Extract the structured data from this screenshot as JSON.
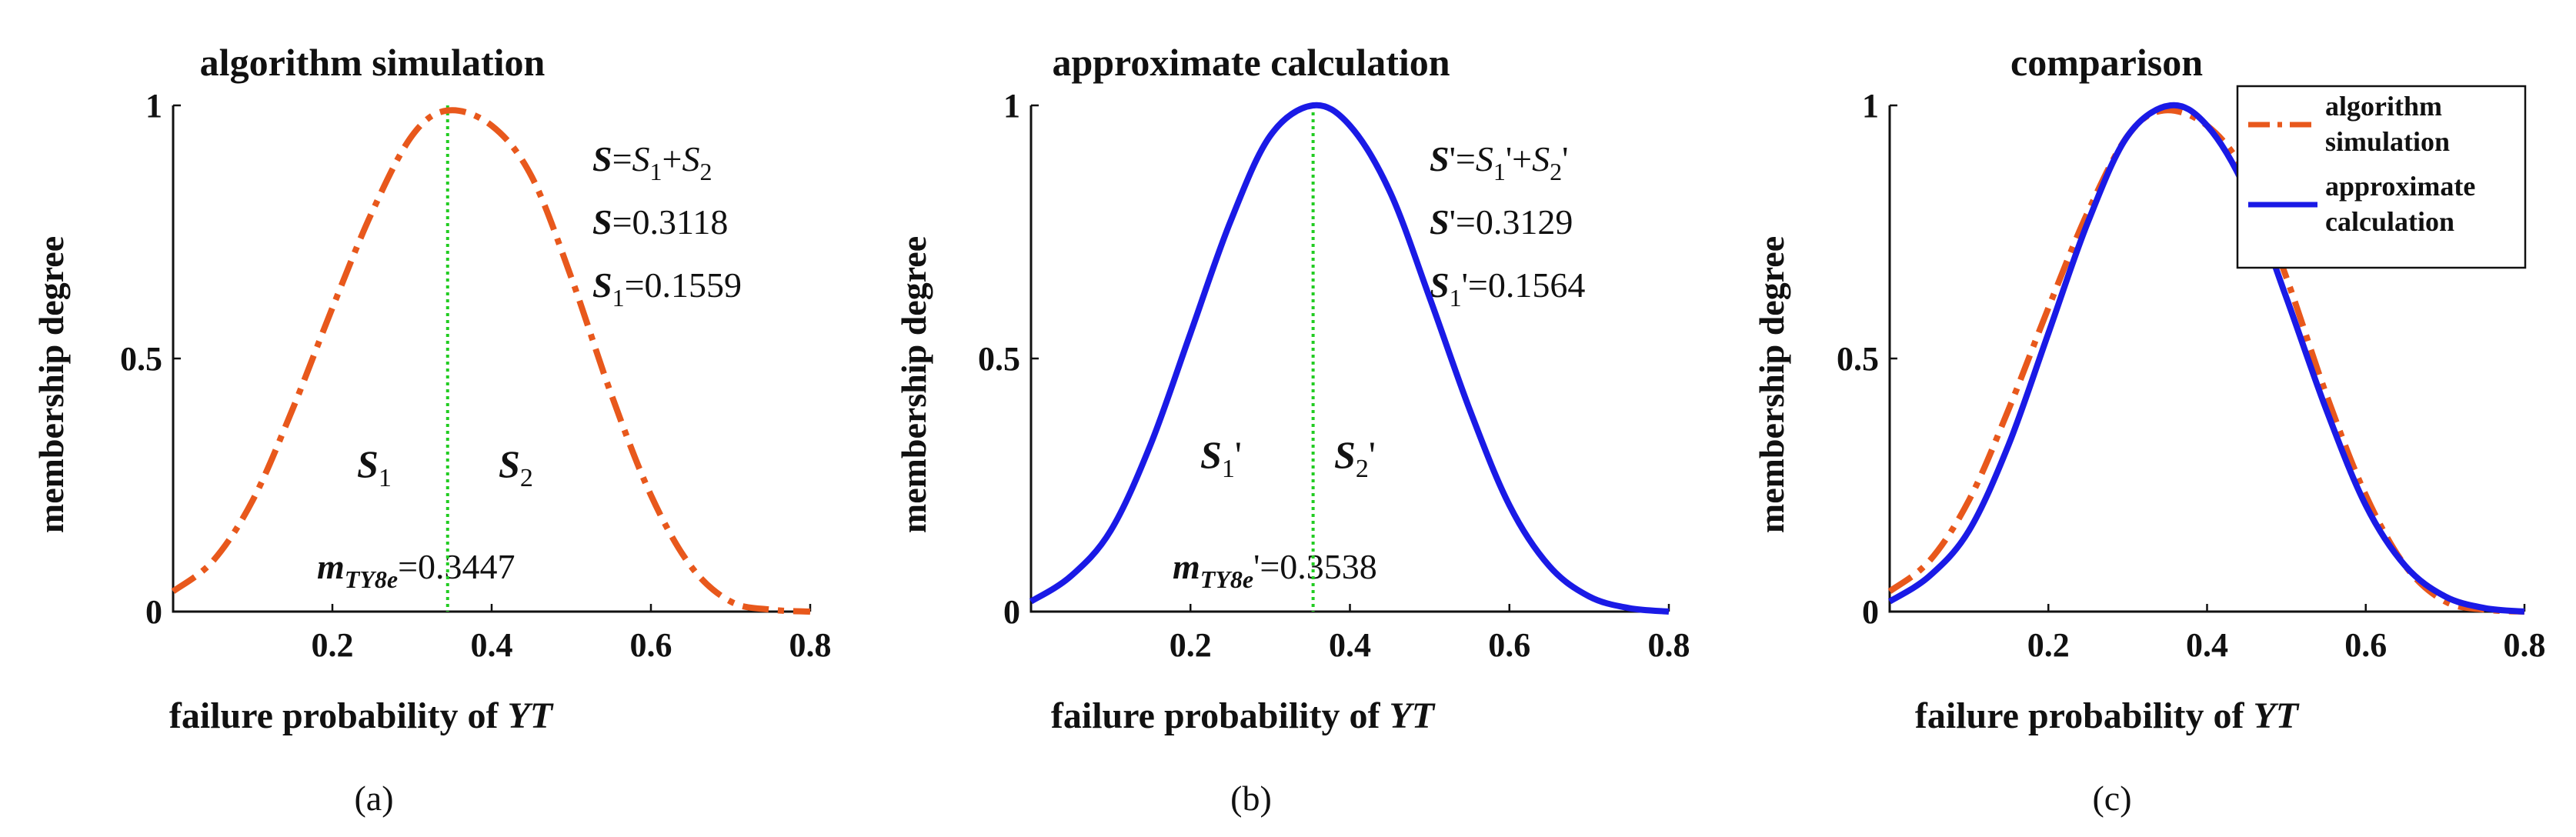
{
  "chart_data": [
    {
      "type": "line",
      "title": "algorithm simulation",
      "xlabel_text": "failure probability of ",
      "xlabel_var": "YT",
      "ylabel": "membership degree",
      "caption": "(a)",
      "xlim": [
        0.0,
        0.8
      ],
      "ylim": [
        0,
        1
      ],
      "xticks": [
        "0.2",
        "0.4",
        "0.6",
        "0.8"
      ],
      "yticks": [
        "0",
        "0.5",
        "1"
      ],
      "series": [
        {
          "color": "#e8581c",
          "dash": "dashdot",
          "x": [
            0.0,
            0.05,
            0.1,
            0.15,
            0.2,
            0.25,
            0.3,
            0.3447,
            0.4,
            0.45,
            0.5,
            0.55,
            0.6,
            0.65,
            0.7,
            0.75,
            0.8
          ],
          "y": [
            0.04,
            0.1,
            0.22,
            0.4,
            0.6,
            0.79,
            0.94,
            0.99,
            0.96,
            0.86,
            0.66,
            0.43,
            0.23,
            0.09,
            0.02,
            0.004,
            0.0
          ]
        }
      ],
      "vline_x": 0.3447,
      "equations": {
        "eq1": {
          "main": "S",
          "mid": "=",
          "v1": "S",
          "s1": "1",
          "op": "+",
          "v2": "S",
          "s2": "2"
        },
        "eq2": {
          "main": "S",
          "rest": "=0.3118"
        },
        "eq3": {
          "main": "S",
          "sub": "1",
          "rest": "=0.1559"
        }
      },
      "region_labels": [
        {
          "var": "S",
          "sub": "1"
        },
        {
          "var": "S",
          "sub": "2"
        }
      ],
      "mean_label": {
        "var": "m",
        "sub": "TY8e",
        "value": "=0.3447"
      }
    },
    {
      "type": "line",
      "title": "approximate calculation",
      "xlabel_text": "failure probability of ",
      "xlabel_var": "YT",
      "ylabel": "membership degree",
      "caption": "(b)",
      "xlim": [
        0.0,
        0.8
      ],
      "ylim": [
        0,
        1
      ],
      "xticks": [
        "0.2",
        "0.4",
        "0.6",
        "0.8"
      ],
      "yticks": [
        "0",
        "0.5",
        "1"
      ],
      "series": [
        {
          "color": "#1a1ae6",
          "dash": "solid",
          "x": [
            0.0,
            0.05,
            0.1,
            0.15,
            0.2,
            0.25,
            0.3,
            0.3538,
            0.4,
            0.45,
            0.5,
            0.55,
            0.6,
            0.65,
            0.7,
            0.75,
            0.8
          ],
          "y": [
            0.02,
            0.07,
            0.16,
            0.33,
            0.55,
            0.77,
            0.94,
            1.0,
            0.96,
            0.83,
            0.62,
            0.4,
            0.21,
            0.09,
            0.03,
            0.007,
            0.0
          ]
        }
      ],
      "vline_x": 0.3538,
      "equations": {
        "eq1": {
          "main": "S",
          "mid": "'=",
          "v1": "S",
          "s1": "1",
          "op": "'+",
          "v2": "S",
          "s2": "2",
          "tail": "'"
        },
        "eq2": {
          "main": "S",
          "rest": "'=0.3129"
        },
        "eq3": {
          "main": "S",
          "sub": "1",
          "rest": "'=0.1564"
        }
      },
      "region_labels": [
        {
          "var": "S",
          "sub": "1",
          "prime": "'"
        },
        {
          "var": "S",
          "sub": "2",
          "prime": "'"
        }
      ],
      "mean_label": {
        "var": "m",
        "sub": "TY8e",
        "value": "'=0.3538"
      }
    },
    {
      "type": "line",
      "title": "comparison",
      "xlabel_text": "failure probability of ",
      "xlabel_var": "YT",
      "ylabel": "membership degree",
      "caption": "(c)",
      "xlim": [
        0.0,
        0.8
      ],
      "ylim": [
        0,
        1
      ],
      "xticks": [
        "0.2",
        "0.4",
        "0.6",
        "0.8"
      ],
      "yticks": [
        "0",
        "0.5",
        "1"
      ],
      "legend_position": "top-right",
      "series": [
        {
          "name": "algorithm simulation",
          "legend_lines": [
            "algorithm",
            "simulation"
          ],
          "color": "#e8581c",
          "dash": "dashdot",
          "x": [
            0.0,
            0.05,
            0.1,
            0.15,
            0.2,
            0.25,
            0.3,
            0.3447,
            0.4,
            0.45,
            0.5,
            0.55,
            0.6,
            0.65,
            0.7,
            0.75,
            0.8
          ],
          "y": [
            0.04,
            0.1,
            0.22,
            0.4,
            0.6,
            0.79,
            0.94,
            0.99,
            0.96,
            0.86,
            0.66,
            0.43,
            0.23,
            0.09,
            0.02,
            0.004,
            0.0
          ]
        },
        {
          "name": "approximate calculation",
          "legend_lines": [
            "approximate",
            "calculation"
          ],
          "color": "#1a1ae6",
          "dash": "solid",
          "x": [
            0.0,
            0.05,
            0.1,
            0.15,
            0.2,
            0.25,
            0.3,
            0.3538,
            0.4,
            0.45,
            0.5,
            0.55,
            0.6,
            0.65,
            0.7,
            0.75,
            0.8
          ],
          "y": [
            0.02,
            0.07,
            0.16,
            0.33,
            0.55,
            0.77,
            0.94,
            1.0,
            0.96,
            0.83,
            0.62,
            0.4,
            0.21,
            0.09,
            0.03,
            0.007,
            0.0
          ]
        }
      ]
    }
  ]
}
